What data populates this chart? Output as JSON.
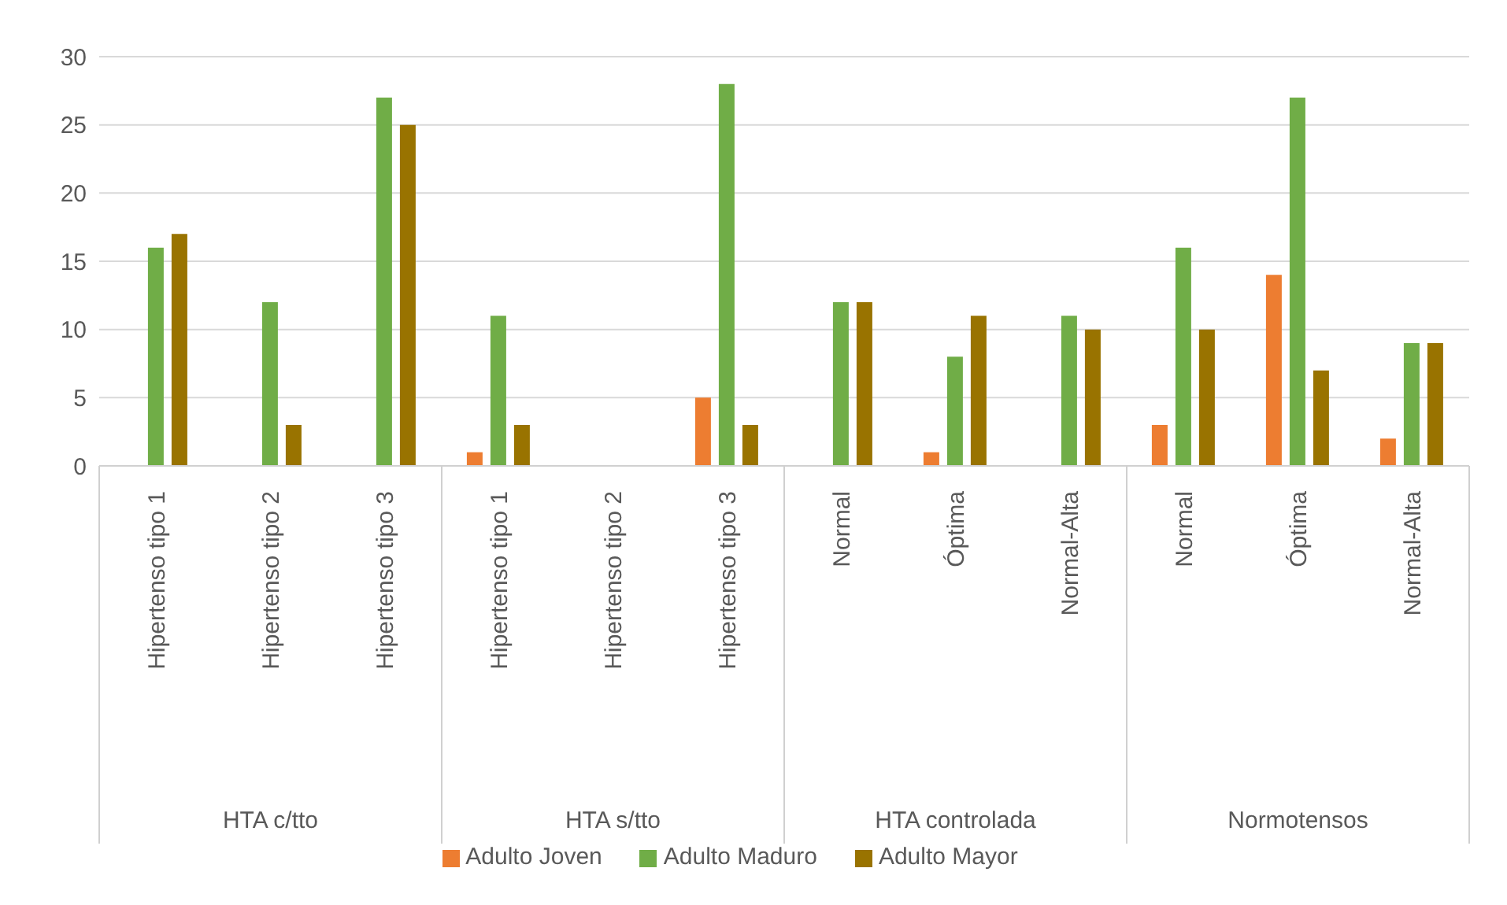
{
  "chart_data": {
    "type": "bar",
    "categories": [
      "Hipertenso tipo 1",
      "Hipertenso tipo 2",
      "Hipertenso tipo 3",
      "Hipertenso tipo 1",
      "Hipertenso tipo 2",
      "Hipertenso tipo 3",
      "Normal",
      "Óptima",
      "Normal-Alta",
      "Normal",
      "Óptima",
      "Normal-Alta"
    ],
    "series": [
      {
        "name": "Adulto Joven",
        "color": "#ed7d31",
        "values": [
          null,
          null,
          null,
          1,
          null,
          5,
          null,
          1,
          null,
          3,
          14,
          2
        ]
      },
      {
        "name": "Adulto Maduro",
        "color": "#70ad47",
        "values": [
          16,
          12,
          27,
          11,
          null,
          28,
          12,
          8,
          11,
          16,
          27,
          9
        ]
      },
      {
        "name": "Adulto Mayor",
        "color": "#997300",
        "values": [
          17,
          3,
          25,
          3,
          null,
          3,
          12,
          11,
          10,
          10,
          7,
          9
        ]
      }
    ],
    "annotations": [
      "HTA c/tto",
      "HTA s/tto",
      "HTA controlada",
      "Normotensos"
    ],
    "ylim": [
      0,
      30
    ],
    "yticks": [
      0,
      5,
      10,
      15,
      20,
      25,
      30
    ],
    "grid": "y",
    "legend": "bottom"
  }
}
